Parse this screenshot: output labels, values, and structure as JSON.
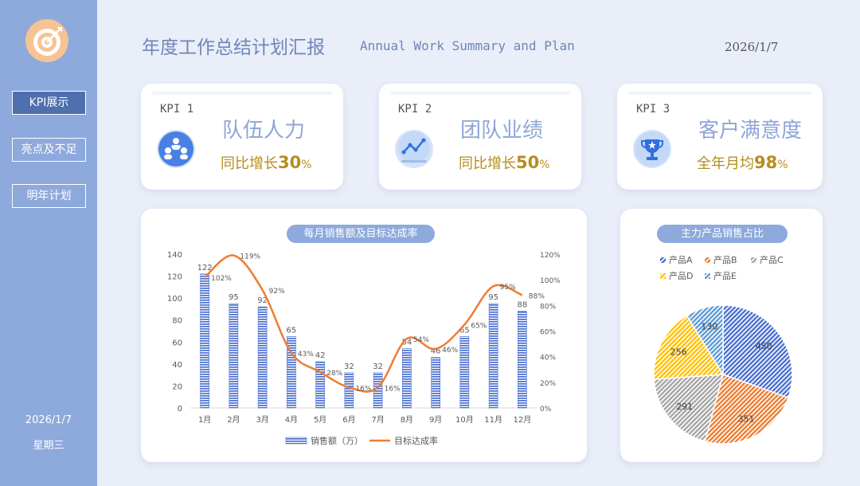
{
  "sidebar": {
    "nav": [
      {
        "label": "KPI展示",
        "active": true
      },
      {
        "label": "亮点及不足",
        "active": false
      },
      {
        "label": "明年计划",
        "active": false
      }
    ],
    "date": "2026/1/7",
    "weekday": "星期三"
  },
  "header": {
    "title": "年度工作总结计划汇报",
    "subtitle": "Annual Work Summary and Plan",
    "date": "2026/1/7"
  },
  "kpis": [
    {
      "label": "KPI 1",
      "title": "队伍人力",
      "prefix": "同比增长",
      "number": "30",
      "unit": "%",
      "icon": "team-people-icon"
    },
    {
      "label": "KPI 2",
      "title": "团队业绩",
      "prefix": "同比增长",
      "number": "50",
      "unit": "%",
      "icon": "trend-chart-icon"
    },
    {
      "label": "KPI 3",
      "title": "客户满意度",
      "prefix": "全年月均",
      "number": "98",
      "unit": "%",
      "icon": "trophy-icon"
    }
  ],
  "colors": {
    "bar": "#4a6fd0",
    "line": "#ed7d31",
    "pie": [
      "#4a6fd0",
      "#ed7d31",
      "#a5a5a5",
      "#ffc000",
      "#5b9bd5"
    ]
  },
  "chart_data": [
    {
      "type": "bar",
      "title": "每月销售额及目标达成率",
      "categories": [
        "1月",
        "2月",
        "3月",
        "4月",
        "5月",
        "6月",
        "7月",
        "8月",
        "9月",
        "10月",
        "11月",
        "12月"
      ],
      "series": [
        {
          "name": "销售额（万）",
          "type": "bar",
          "axis": "left",
          "values": [
            122,
            95,
            92,
            65,
            42,
            32,
            32,
            54,
            46,
            65,
            95,
            88
          ]
        },
        {
          "name": "目标达成率",
          "type": "line",
          "smooth": true,
          "axis": "right",
          "values": [
            102,
            119,
            92,
            43,
            28,
            16,
            16,
            54,
            46,
            65,
            95,
            88
          ],
          "value_suffix": "%"
        }
      ],
      "ylim": [
        0,
        140
      ],
      "yticks": [
        0,
        20,
        40,
        60,
        80,
        100,
        120,
        140
      ],
      "y2lim": [
        0,
        120
      ],
      "y2ticks": [
        "0%",
        "20%",
        "40%",
        "60%",
        "80%",
        "100%",
        "120%"
      ],
      "legend": "bottom",
      "grid": false
    },
    {
      "type": "pie",
      "title": "主力产品销售占比",
      "categories": [
        "产品A",
        "产品B",
        "产品C",
        "产品D",
        "产品E"
      ],
      "values": [
        450,
        351,
        291,
        256,
        130
      ],
      "legend": "top"
    }
  ]
}
